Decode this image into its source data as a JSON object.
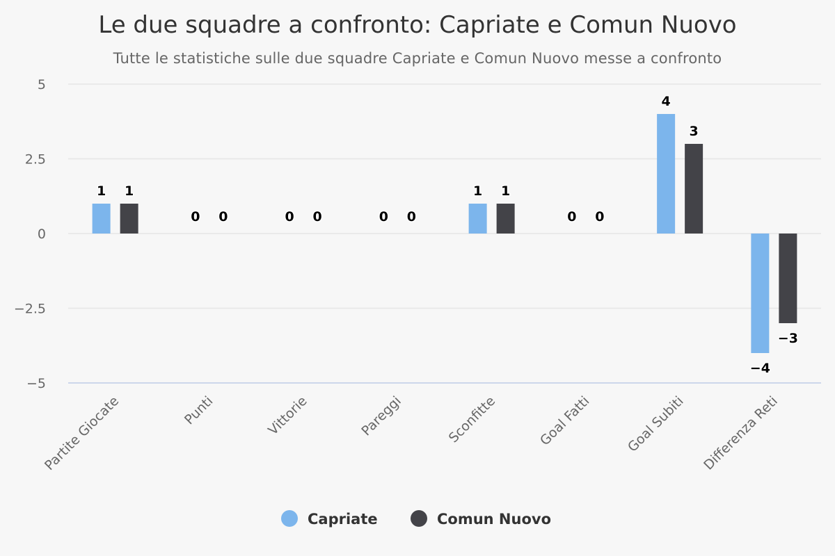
{
  "chart_data": {
    "type": "bar",
    "title": "Le due squadre a confronto: Capriate e Comun Nuovo",
    "subtitle": "Tutte le statistiche sulle due squadre Capriate e Comun Nuovo messe a confronto",
    "categories": [
      "Partite Giocate",
      "Punti",
      "Vittorie",
      "Pareggi",
      "Sconfitte",
      "Goal Fatti",
      "Goal Subiti",
      "Differenza Reti"
    ],
    "series": [
      {
        "name": "Capriate",
        "color": "#7cb5ec",
        "values": [
          1,
          0,
          0,
          0,
          1,
          0,
          4,
          -4
        ]
      },
      {
        "name": "Comun Nuovo",
        "color": "#434348",
        "values": [
          1,
          0,
          0,
          0,
          1,
          0,
          3,
          -3
        ]
      }
    ],
    "ylim": [
      -5,
      5
    ],
    "yticks": [
      5,
      2.5,
      0,
      -2.5,
      -5
    ],
    "ytick_labels": [
      "5",
      "2.5",
      "0",
      "−2.5",
      "−5"
    ],
    "grid": true,
    "legend": "bottom-center"
  }
}
